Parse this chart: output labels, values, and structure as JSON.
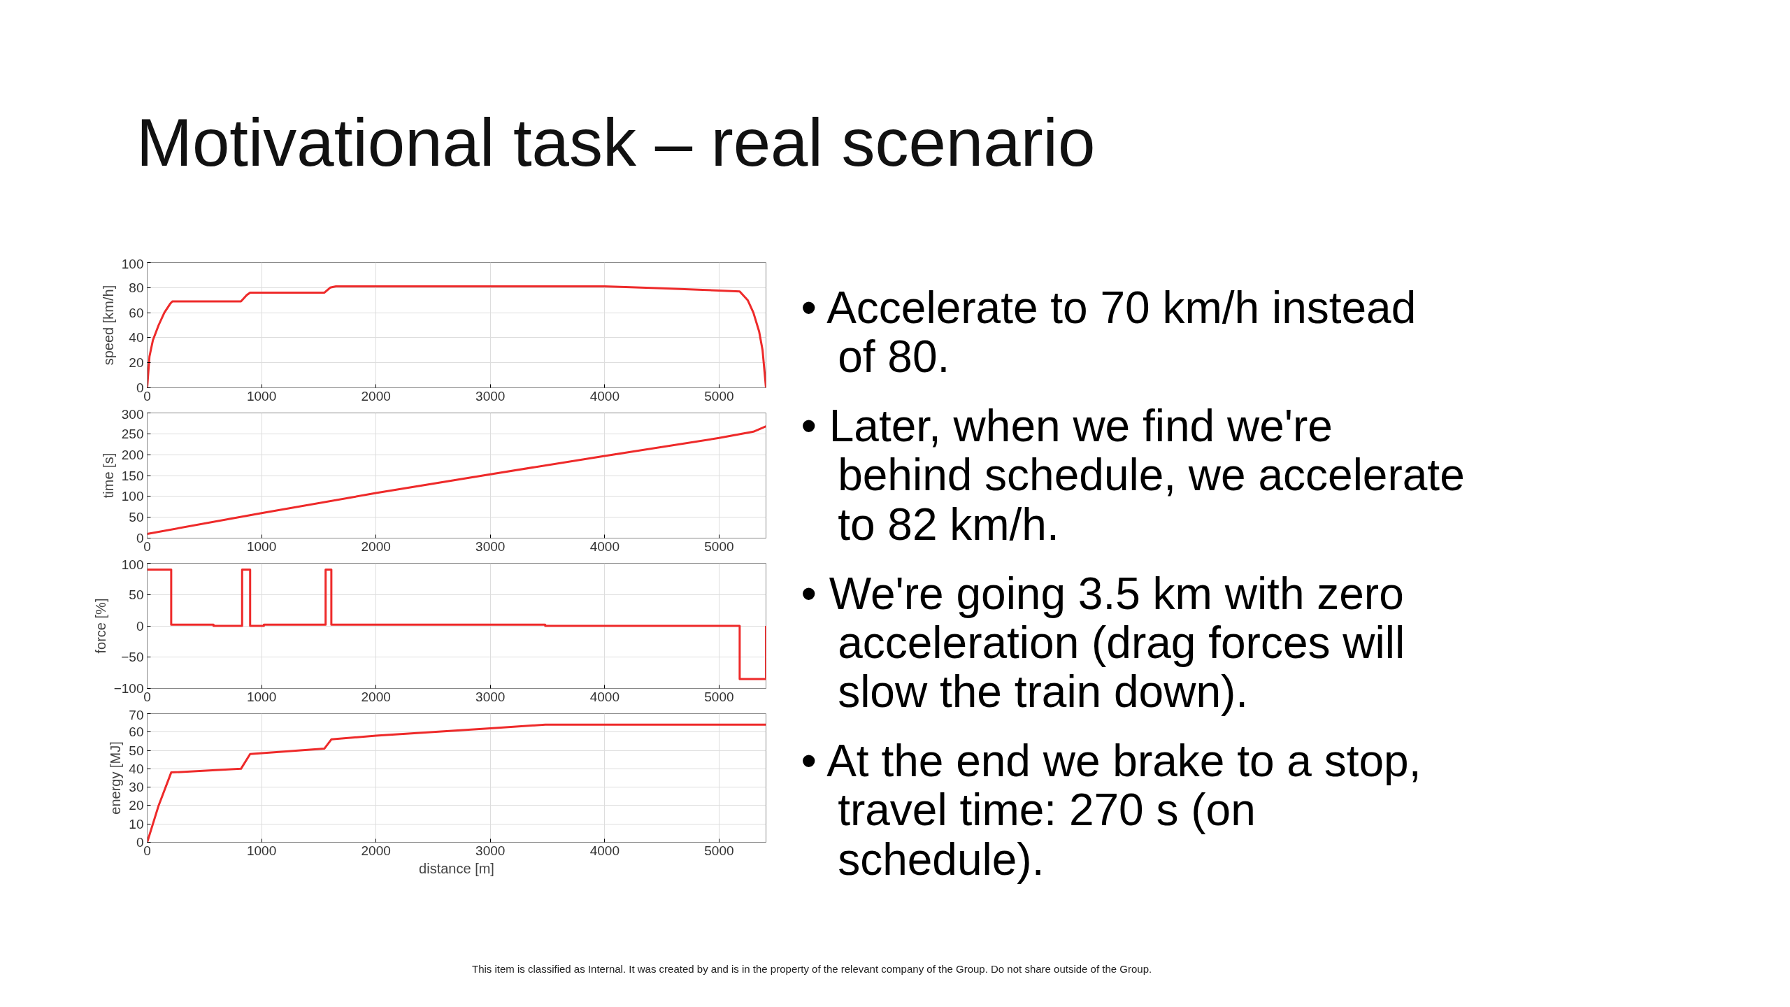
{
  "chart_data": [
    {
      "type": "line",
      "title": "Motivational task – real scenario",
      "ylabel": "speed [km/h]",
      "xlim": [
        0,
        5410
      ],
      "xticks": [
        0,
        1000,
        2000,
        3000,
        4000,
        5000
      ],
      "ylim": [
        0,
        100
      ],
      "yticks": [
        0,
        20,
        40,
        60,
        80,
        100
      ],
      "grid": true,
      "series": [
        {
          "color": "#ee2a2a",
          "x": [
            0,
            20,
            50,
            100,
            150,
            200,
            220,
            820,
            870,
            900,
            1550,
            1600,
            1650,
            4000,
            4500,
            5180,
            5250,
            5300,
            5350,
            5380,
            5410
          ],
          "values": [
            0,
            25,
            38,
            50,
            60,
            67,
            69,
            69,
            74,
            76,
            76,
            80,
            81,
            81,
            79.5,
            77,
            70,
            60,
            45,
            30,
            0
          ]
        }
      ]
    },
    {
      "type": "line",
      "ylabel": "time [s]",
      "xlim": [
        0,
        5410
      ],
      "xticks": [
        0,
        1000,
        2000,
        3000,
        4000,
        5000
      ],
      "ylim": [
        0,
        300
      ],
      "yticks": [
        0,
        50,
        100,
        150,
        200,
        250,
        300
      ],
      "grid": true,
      "series": [
        {
          "color": "#ee2a2a",
          "x": [
            0,
            1000,
            2000,
            3000,
            4000,
            5000,
            5300,
            5410
          ],
          "values": [
            10,
            60,
            108,
            153,
            197,
            240,
            255,
            268
          ]
        }
      ]
    },
    {
      "type": "line",
      "ylabel": "force [%]",
      "xlim": [
        0,
        5410
      ],
      "xticks": [
        0,
        1000,
        2000,
        3000,
        4000,
        5000
      ],
      "ylim": [
        -100,
        100
      ],
      "yticks": [
        -100,
        -50,
        0,
        50,
        100
      ],
      "grid": true,
      "series": [
        {
          "color": "#ee2a2a",
          "x": [
            0,
            210,
            210,
            580,
            580,
            830,
            830,
            900,
            900,
            1020,
            1020,
            1560,
            1560,
            1610,
            1610,
            3480,
            3480,
            5180,
            5180,
            5410,
            5410
          ],
          "values": [
            90,
            90,
            2,
            2,
            0,
            0,
            90,
            90,
            0,
            0,
            2,
            2,
            90,
            90,
            2,
            2,
            0,
            0,
            -85,
            -85,
            0
          ]
        }
      ]
    },
    {
      "type": "line",
      "ylabel": "energy [MJ]",
      "xlabel": "distance [m]",
      "xlim": [
        0,
        5410
      ],
      "xticks": [
        0,
        1000,
        2000,
        3000,
        4000,
        5000
      ],
      "ylim": [
        0,
        70
      ],
      "yticks": [
        0,
        10,
        20,
        30,
        40,
        50,
        60,
        70
      ],
      "grid": true,
      "series": [
        {
          "color": "#ee2a2a",
          "x": [
            0,
            100,
            210,
            820,
            900,
            1550,
            1610,
            2000,
            3000,
            3480,
            5410
          ],
          "values": [
            0,
            20,
            38,
            40,
            48,
            51,
            56,
            58,
            62,
            64,
            64
          ]
        }
      ]
    },
    {
      "type": "other",
      "annotations": [
        "• Accelerate to 70 km/h instead of 80.",
        "• Later, when we find we're behind schedule, we accelerate to 82 km/h.",
        "• We're going 3.5 km with zero acceleration (drag forces will slow the train down).",
        "• At the end we brake to a stop, travel time: 270 s (on schedule).",
        "This item is classified as Internal. It was created by and is in the property of the relevant company of the Group. Do not share outside of the Group."
      ]
    }
  ]
}
